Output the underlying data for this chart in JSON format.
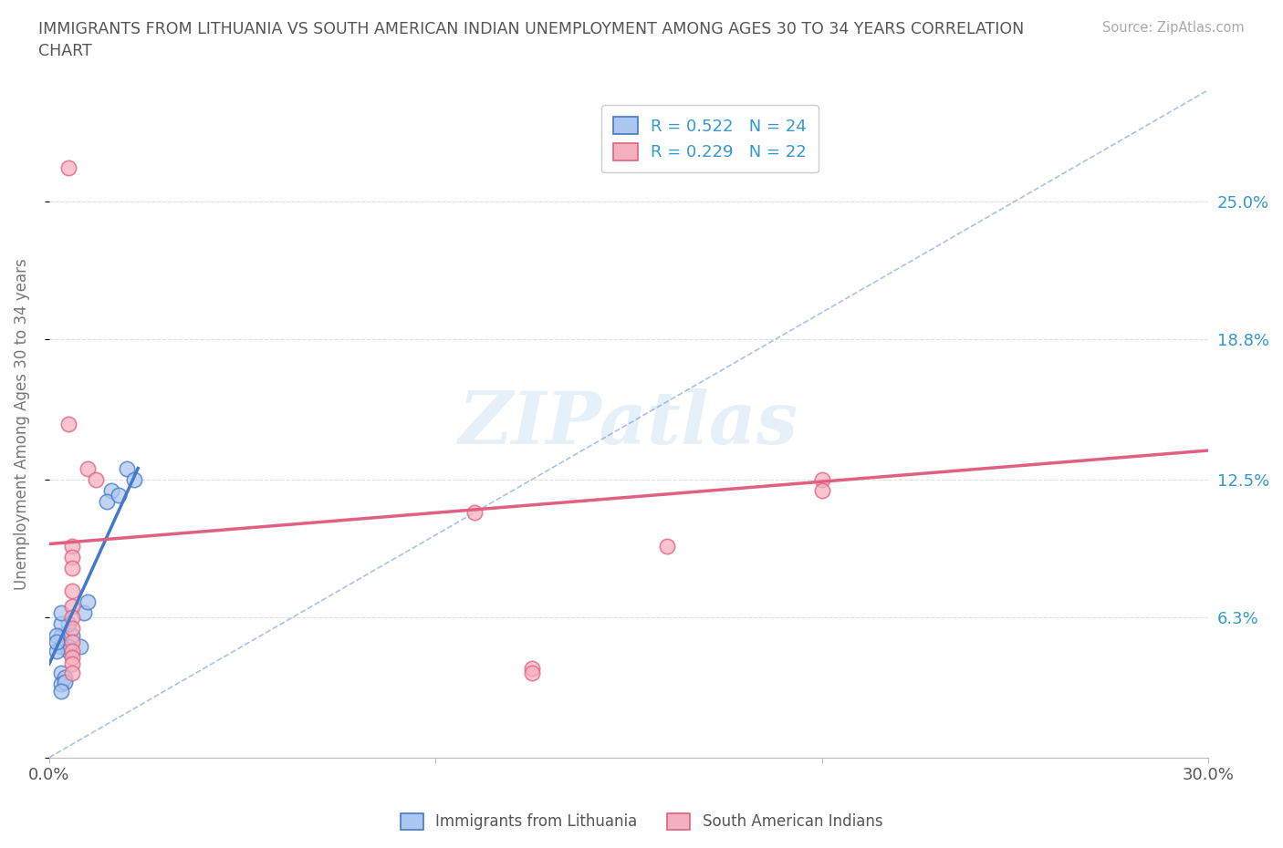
{
  "title": "IMMIGRANTS FROM LITHUANIA VS SOUTH AMERICAN INDIAN UNEMPLOYMENT AMONG AGES 30 TO 34 YEARS CORRELATION\nCHART",
  "source_text": "Source: ZipAtlas.com",
  "ylabel": "Unemployment Among Ages 30 to 34 years",
  "xlim": [
    0.0,
    0.3
  ],
  "ylim": [
    0.0,
    0.3
  ],
  "xtick_positions": [
    0.0,
    0.1,
    0.2,
    0.3
  ],
  "xticklabels": [
    "0.0%",
    "",
    "",
    "30.0%"
  ],
  "ytick_positions": [
    0.0,
    0.063,
    0.125,
    0.188,
    0.25
  ],
  "ytick_labels": [
    "",
    "6.3%",
    "12.5%",
    "18.8%",
    "25.0%"
  ],
  "background_color": "#ffffff",
  "grid_color": "#e0e0e0",
  "watermark_text": "ZIPatlas",
  "legend_R1": "R = 0.522",
  "legend_N1": "N = 24",
  "legend_R2": "R = 0.229",
  "legend_N2": "N = 22",
  "color_blue": "#adc8f0",
  "color_pink": "#f5b0c0",
  "line_color_blue": "#4478c8",
  "line_color_pink": "#e06080",
  "scatter_blue": [
    [
      0.008,
      0.05
    ],
    [
      0.009,
      0.065
    ],
    [
      0.02,
      0.13
    ],
    [
      0.016,
      0.12
    ],
    [
      0.01,
      0.07
    ],
    [
      0.006,
      0.055
    ],
    [
      0.005,
      0.06
    ],
    [
      0.005,
      0.05
    ],
    [
      0.003,
      0.055
    ],
    [
      0.003,
      0.06
    ],
    [
      0.003,
      0.065
    ],
    [
      0.003,
      0.05
    ],
    [
      0.005,
      0.048
    ],
    [
      0.002,
      0.055
    ],
    [
      0.002,
      0.048
    ],
    [
      0.002,
      0.052
    ],
    [
      0.015,
      0.115
    ],
    [
      0.018,
      0.118
    ],
    [
      0.022,
      0.125
    ],
    [
      0.003,
      0.038
    ],
    [
      0.003,
      0.033
    ],
    [
      0.004,
      0.036
    ],
    [
      0.004,
      0.034
    ],
    [
      0.003,
      0.03
    ]
  ],
  "scatter_pink": [
    [
      0.005,
      0.265
    ],
    [
      0.005,
      0.15
    ],
    [
      0.01,
      0.13
    ],
    [
      0.012,
      0.125
    ],
    [
      0.006,
      0.095
    ],
    [
      0.006,
      0.09
    ],
    [
      0.006,
      0.085
    ],
    [
      0.006,
      0.075
    ],
    [
      0.006,
      0.068
    ],
    [
      0.006,
      0.063
    ],
    [
      0.006,
      0.058
    ],
    [
      0.006,
      0.052
    ],
    [
      0.006,
      0.048
    ],
    [
      0.006,
      0.045
    ],
    [
      0.006,
      0.042
    ],
    [
      0.006,
      0.038
    ],
    [
      0.11,
      0.11
    ],
    [
      0.16,
      0.095
    ],
    [
      0.2,
      0.125
    ],
    [
      0.2,
      0.12
    ],
    [
      0.125,
      0.04
    ],
    [
      0.125,
      0.038
    ]
  ],
  "blue_trend_x": [
    0.0,
    0.023
  ],
  "blue_trend_y": [
    0.042,
    0.13
  ],
  "pink_trend_x": [
    0.0,
    0.3
  ],
  "pink_trend_y": [
    0.096,
    0.138
  ],
  "dash_line_x": [
    0.0,
    0.3
  ],
  "dash_line_y": [
    0.0,
    0.3
  ]
}
